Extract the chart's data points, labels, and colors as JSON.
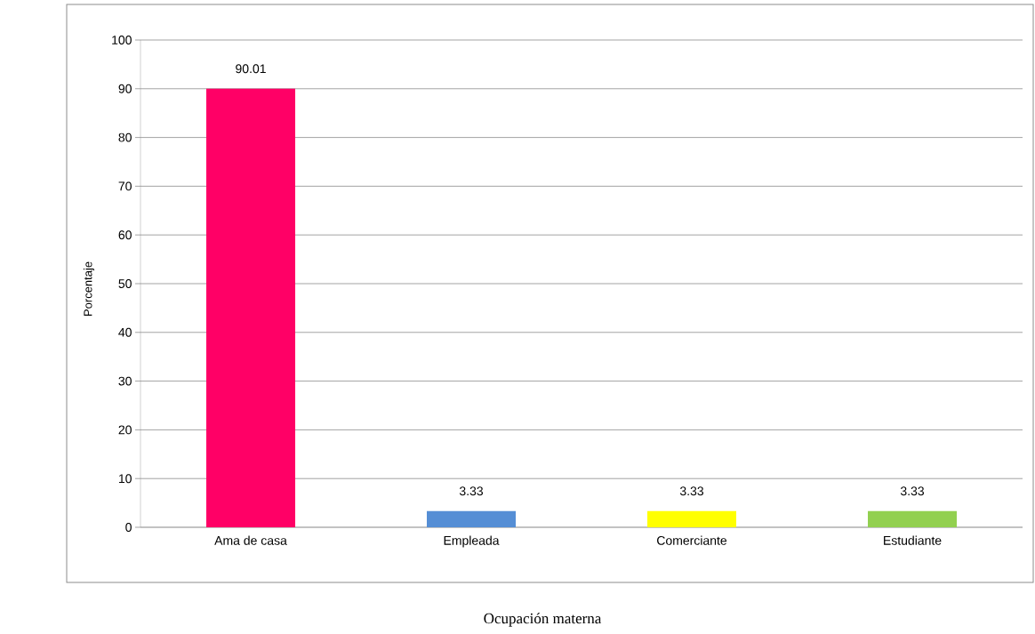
{
  "chart_data": {
    "type": "bar",
    "xlabel": "Ocupación materna",
    "ylabel": "Porcentaje",
    "categories": [
      "Ama de casa",
      "Empleada",
      "Comerciante",
      "Estudiante"
    ],
    "values": [
      90.01,
      3.33,
      3.33,
      3.33
    ],
    "colors": [
      "#ff0066",
      "#558ed5",
      "#ffff00",
      "#92d050"
    ],
    "ylim": [
      0,
      100
    ],
    "yticks": [
      0,
      10,
      20,
      30,
      40,
      50,
      60,
      70,
      80,
      90,
      100
    ],
    "grid": "y",
    "data_labels": true
  }
}
